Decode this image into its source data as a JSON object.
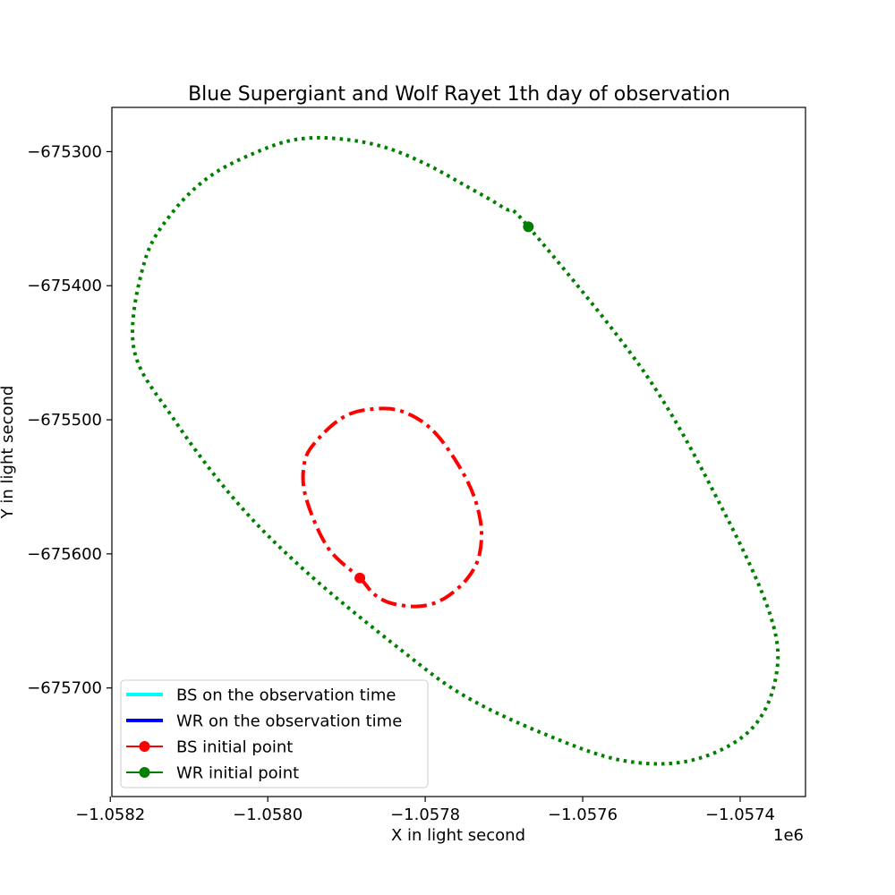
{
  "chart_data": {
    "type": "line",
    "title": "Blue Supergiant and Wolf Rayet 1th day of observation",
    "xlabel": "X in light second",
    "ylabel": "Y in light second",
    "x_offset_label": "1e6",
    "xlim": [
      -1058198,
      -1057317
    ],
    "ylim": [
      -675781,
      -675267
    ],
    "x_ticks": [
      {
        "value": -1058200,
        "label": "−1.0582"
      },
      {
        "value": -1058000,
        "label": "−1.0580"
      },
      {
        "value": -1057800,
        "label": "−1.0578"
      },
      {
        "value": -1057600,
        "label": "−1.0576"
      },
      {
        "value": -1057400,
        "label": "−1.0574"
      }
    ],
    "y_ticks": [
      {
        "value": -675300,
        "label": "−675300"
      },
      {
        "value": -675400,
        "label": "−675400"
      },
      {
        "value": -675500,
        "label": "−675500"
      },
      {
        "value": -675600,
        "label": "−675600"
      },
      {
        "value": -675700,
        "label": "−675700"
      }
    ],
    "orbits": [
      {
        "name": "BS orbit",
        "color": "#ff0000",
        "style": "dashdot",
        "points": [
          [
            -1057883,
            -675618
          ],
          [
            -1057865,
            -675630
          ],
          [
            -1057842,
            -675637
          ],
          [
            -1057806,
            -675639
          ],
          [
            -1057775,
            -675633
          ],
          [
            -1057746,
            -675618
          ],
          [
            -1057731,
            -675600
          ],
          [
            -1057730,
            -675575
          ],
          [
            -1057747,
            -675545
          ],
          [
            -1057787,
            -675510
          ],
          [
            -1057828,
            -675494
          ],
          [
            -1057868,
            -675492
          ],
          [
            -1057904,
            -675498
          ],
          [
            -1057937,
            -675515
          ],
          [
            -1057953,
            -675531
          ],
          [
            -1057952,
            -675557
          ],
          [
            -1057924,
            -675595
          ],
          [
            -1057883,
            -675618
          ]
        ]
      },
      {
        "name": "WR orbit",
        "color": "#008000",
        "style": "dotted",
        "points": [
          [
            -1057669,
            -675356
          ],
          [
            -1057520,
            -675466
          ],
          [
            -1057422,
            -675567
          ],
          [
            -1057361,
            -675647
          ],
          [
            -1057355,
            -675693
          ],
          [
            -1057388,
            -675732
          ],
          [
            -1057462,
            -675754
          ],
          [
            -1057550,
            -675754
          ],
          [
            -1057650,
            -675734
          ],
          [
            -1057750,
            -675706
          ],
          [
            -1057830,
            -675672
          ],
          [
            -1057950,
            -675614
          ],
          [
            -1058040,
            -675561
          ],
          [
            -1058120,
            -675499
          ],
          [
            -1058170,
            -675447
          ],
          [
            -1058157,
            -675383
          ],
          [
            -1058122,
            -675346
          ],
          [
            -1058070,
            -675317
          ],
          [
            -1058000,
            -675297
          ],
          [
            -1057952,
            -675290
          ],
          [
            -1057900,
            -675291
          ],
          [
            -1057850,
            -675297
          ],
          [
            -1057800,
            -675309
          ],
          [
            -1057750,
            -675325
          ],
          [
            -1057700,
            -675342
          ],
          [
            -1057669,
            -675356
          ]
        ]
      }
    ],
    "markers": [
      {
        "name": "BS initial point",
        "x": -1057883,
        "y": -675618,
        "color": "#ff0000"
      },
      {
        "name": "WR initial point",
        "x": -1057669,
        "y": -675356,
        "color": "#008000"
      }
    ],
    "legend": {
      "position": "lower left",
      "entries": [
        {
          "label": "BS on the observation time",
          "color": "#00ffff",
          "kind": "line"
        },
        {
          "label": "WR on the observation time",
          "color": "#0000ff",
          "kind": "line"
        },
        {
          "label": "BS initial point",
          "color": "#ff0000",
          "kind": "marker"
        },
        {
          "label": "WR initial point",
          "color": "#008000",
          "kind": "marker"
        }
      ]
    }
  }
}
